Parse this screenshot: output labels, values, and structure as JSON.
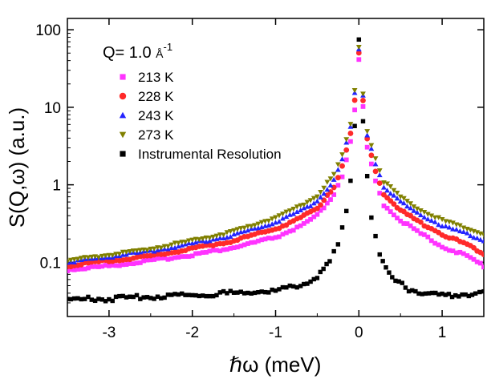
{
  "chart_data": {
    "type": "scatter",
    "title": "",
    "annotation": {
      "prefix": "Q= 1.0 ",
      "unit": "Å",
      "exponent": "-1"
    },
    "xlabel": "ℏω (meV)",
    "ylabel": "S(Q,ω) (a.u.)",
    "xlim": [
      -3.5,
      1.5
    ],
    "ylim": [
      0.02,
      140
    ],
    "yscale": "log",
    "xticks": [
      -3,
      -2,
      -1,
      0,
      1
    ],
    "xtick_labels": [
      "-3",
      "-2",
      "-1",
      "0",
      "1"
    ],
    "yticks": [
      0.1,
      1,
      10,
      100
    ],
    "ytick_labels": [
      "0.1",
      "1",
      "10",
      "100"
    ],
    "legend_position": "top-left",
    "series": [
      {
        "name": "213 K",
        "color": "#ff33ff",
        "marker": "square",
        "points": [
          [
            -3.5,
            0.08
          ],
          [
            -3.0,
            0.09
          ],
          [
            -2.5,
            0.105
          ],
          [
            -2.0,
            0.125
          ],
          [
            -1.5,
            0.155
          ],
          [
            -1.0,
            0.21
          ],
          [
            -0.7,
            0.29
          ],
          [
            -0.5,
            0.4
          ],
          [
            -0.3,
            0.75
          ],
          [
            -0.2,
            1.3
          ],
          [
            -0.1,
            3.5
          ],
          [
            -0.05,
            9
          ],
          [
            0.0,
            40
          ],
          [
            0.05,
            10
          ],
          [
            0.1,
            3.0
          ],
          [
            0.2,
            1.1
          ],
          [
            0.3,
            0.55
          ],
          [
            0.5,
            0.35
          ],
          [
            0.7,
            0.25
          ],
          [
            1.0,
            0.16
          ],
          [
            1.3,
            0.12
          ],
          [
            1.5,
            0.09
          ]
        ]
      },
      {
        "name": "228 K",
        "color": "#ff2a2a",
        "marker": "circle",
        "points": [
          [
            -3.5,
            0.09
          ],
          [
            -3.0,
            0.105
          ],
          [
            -2.5,
            0.12
          ],
          [
            -2.0,
            0.15
          ],
          [
            -1.5,
            0.19
          ],
          [
            -1.0,
            0.27
          ],
          [
            -0.7,
            0.37
          ],
          [
            -0.5,
            0.5
          ],
          [
            -0.3,
            0.95
          ],
          [
            -0.2,
            1.7
          ],
          [
            -0.1,
            4.5
          ],
          [
            -0.05,
            12
          ],
          [
            0.0,
            50
          ],
          [
            0.05,
            12
          ],
          [
            0.1,
            3.8
          ],
          [
            0.2,
            1.5
          ],
          [
            0.3,
            0.75
          ],
          [
            0.5,
            0.47
          ],
          [
            0.7,
            0.34
          ],
          [
            1.0,
            0.23
          ],
          [
            1.3,
            0.17
          ],
          [
            1.5,
            0.13
          ]
        ]
      },
      {
        "name": "243 K",
        "color": "#2424ff",
        "marker": "triangle-up",
        "points": [
          [
            -3.5,
            0.1
          ],
          [
            -3.0,
            0.118
          ],
          [
            -2.5,
            0.14
          ],
          [
            -2.0,
            0.175
          ],
          [
            -1.5,
            0.225
          ],
          [
            -1.0,
            0.33
          ],
          [
            -0.7,
            0.46
          ],
          [
            -0.5,
            0.62
          ],
          [
            -0.3,
            1.15
          ],
          [
            -0.2,
            2.1
          ],
          [
            -0.1,
            5.5
          ],
          [
            -0.05,
            15
          ],
          [
            0.0,
            55
          ],
          [
            0.05,
            14
          ],
          [
            0.1,
            4.5
          ],
          [
            0.2,
            1.9
          ],
          [
            0.3,
            0.95
          ],
          [
            0.5,
            0.6
          ],
          [
            0.7,
            0.43
          ],
          [
            1.0,
            0.3
          ],
          [
            1.3,
            0.23
          ],
          [
            1.5,
            0.19
          ]
        ]
      },
      {
        "name": "273 K",
        "color": "#808000",
        "marker": "triangle-down",
        "points": [
          [
            -3.5,
            0.105
          ],
          [
            -3.0,
            0.125
          ],
          [
            -2.5,
            0.15
          ],
          [
            -2.0,
            0.19
          ],
          [
            -1.5,
            0.25
          ],
          [
            -1.0,
            0.38
          ],
          [
            -0.7,
            0.53
          ],
          [
            -0.5,
            0.72
          ],
          [
            -0.3,
            1.35
          ],
          [
            -0.2,
            2.4
          ],
          [
            -0.1,
            6.0
          ],
          [
            -0.05,
            16
          ],
          [
            0.0,
            60
          ],
          [
            0.05,
            15
          ],
          [
            0.1,
            5.0
          ],
          [
            0.2,
            2.2
          ],
          [
            0.3,
            1.1
          ],
          [
            0.5,
            0.7
          ],
          [
            0.7,
            0.5
          ],
          [
            1.0,
            0.35
          ],
          [
            1.3,
            0.27
          ],
          [
            1.5,
            0.23
          ]
        ]
      },
      {
        "name": "Instrumental Resolution",
        "color": "#000000",
        "marker": "square",
        "points": [
          [
            -3.5,
            0.033
          ],
          [
            -3.0,
            0.034
          ],
          [
            -2.5,
            0.036
          ],
          [
            -2.0,
            0.038
          ],
          [
            -1.5,
            0.04
          ],
          [
            -1.0,
            0.043
          ],
          [
            -0.7,
            0.05
          ],
          [
            -0.5,
            0.065
          ],
          [
            -0.35,
            0.1
          ],
          [
            -0.25,
            0.17
          ],
          [
            -0.15,
            0.45
          ],
          [
            -0.1,
            1.2
          ],
          [
            -0.05,
            6
          ],
          [
            0.0,
            75
          ],
          [
            0.05,
            7
          ],
          [
            0.1,
            1.3
          ],
          [
            0.15,
            0.4
          ],
          [
            0.25,
            0.12
          ],
          [
            0.4,
            0.06
          ],
          [
            0.6,
            0.045
          ],
          [
            0.8,
            0.04
          ],
          [
            1.0,
            0.037
          ],
          [
            1.2,
            0.038
          ],
          [
            1.4,
            0.04
          ],
          [
            1.5,
            0.042
          ]
        ]
      }
    ]
  }
}
